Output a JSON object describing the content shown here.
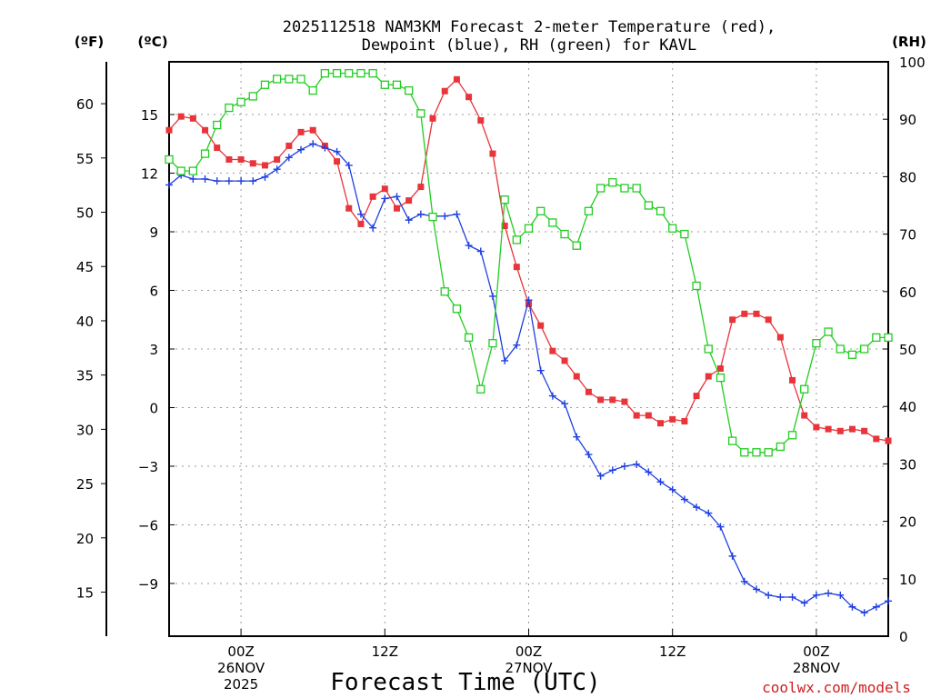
{
  "chart_data": {
    "type": "line",
    "title": [
      "2025112518 NAM3KM Forecast 2-meter Temperature (red),",
      "Dewpoint (blue), RH (green) for KAVL"
    ],
    "xlabel": "Forecast Time (UTC)",
    "credit": "coolwx.com/models",
    "axes": {
      "fahrenheit": {
        "unit": "(ºF)",
        "ticks": [
          15,
          20,
          25,
          30,
          35,
          40,
          45,
          50,
          55,
          60
        ]
      },
      "celsius": {
        "unit": "(ºC)",
        "ylim": [
          -11.7,
          17.7
        ],
        "ticks": [
          -9,
          -6,
          -3,
          0,
          3,
          6,
          9,
          12,
          15
        ]
      },
      "rh": {
        "unit": "(RH)",
        "ylim": [
          0,
          100
        ],
        "ticks": [
          0,
          10,
          20,
          30,
          40,
          50,
          60,
          70,
          80,
          90,
          100
        ]
      }
    },
    "x_hours_range": [
      0,
      60
    ],
    "x_ticks": [
      {
        "hour": 6,
        "lines": [
          "00Z",
          "26NOV",
          "2025"
        ]
      },
      {
        "hour": 18,
        "lines": [
          "12Z"
        ]
      },
      {
        "hour": 30,
        "lines": [
          "00Z",
          "27NOV"
        ]
      },
      {
        "hour": 42,
        "lines": [
          "12Z"
        ]
      },
      {
        "hour": 54,
        "lines": [
          "00Z",
          "28NOV"
        ]
      }
    ],
    "colors": {
      "temperature": "#e8343a",
      "dewpoint": "#2040e0",
      "rh": "#22cc22",
      "grid": "#999999"
    },
    "series": [
      {
        "name": "Temperature (°C)",
        "axis": "celsius",
        "marker": "filled-square",
        "x": [
          0,
          1,
          2,
          3,
          4,
          5,
          6,
          7,
          8,
          9,
          10,
          11,
          12,
          13,
          14,
          15,
          16,
          17,
          18,
          19,
          20,
          21,
          22,
          23,
          24,
          25,
          26,
          27,
          28,
          29,
          30,
          31,
          32,
          33,
          34,
          35,
          36,
          37,
          38,
          39,
          40,
          41,
          42,
          43,
          44,
          45,
          46,
          47,
          48,
          49,
          50,
          51,
          52,
          53,
          54,
          55,
          56,
          57,
          58,
          59,
          60
        ],
        "values": [
          14.2,
          14.9,
          14.8,
          14.2,
          13.3,
          12.7,
          12.7,
          12.5,
          12.4,
          12.7,
          13.4,
          14.1,
          14.2,
          13.4,
          12.6,
          10.2,
          9.4,
          10.8,
          11.2,
          10.2,
          10.6,
          11.3,
          14.8,
          16.2,
          16.8,
          15.9,
          14.7,
          13.0,
          9.3,
          7.2,
          5.3,
          4.2,
          2.9,
          2.4,
          1.6,
          0.8,
          0.4,
          0.4,
          0.3,
          -0.4,
          -0.4,
          -0.8,
          -0.6,
          -0.7,
          0.6,
          1.6,
          2.0,
          4.5,
          4.8,
          4.8,
          4.5,
          3.6,
          1.4,
          -0.4,
          -1.0,
          -1.1,
          -1.2,
          -1.1,
          -1.2,
          -1.6,
          -1.7
        ]
      },
      {
        "name": "Dewpoint (°C)",
        "axis": "celsius",
        "marker": "plus",
        "x": [
          0,
          1,
          2,
          3,
          4,
          5,
          6,
          7,
          8,
          9,
          10,
          11,
          12,
          13,
          14,
          15,
          16,
          17,
          18,
          19,
          20,
          21,
          22,
          23,
          24,
          25,
          26,
          27,
          28,
          29,
          30,
          31,
          32,
          33,
          34,
          35,
          36,
          37,
          38,
          39,
          40,
          41,
          42,
          43,
          44,
          45,
          46,
          47,
          48,
          49,
          50,
          51,
          52,
          53,
          54,
          55,
          56,
          57,
          58,
          59,
          60
        ],
        "values": [
          11.4,
          11.9,
          11.7,
          11.7,
          11.6,
          11.6,
          11.6,
          11.6,
          11.8,
          12.2,
          12.8,
          13.2,
          13.5,
          13.3,
          13.1,
          12.4,
          9.9,
          9.2,
          10.7,
          10.8,
          9.6,
          9.9,
          9.8,
          9.8,
          9.9,
          8.3,
          8.0,
          5.7,
          2.4,
          3.2,
          5.5,
          1.9,
          0.6,
          0.2,
          -1.5,
          -2.4,
          -3.5,
          -3.2,
          -3.0,
          -2.9,
          -3.3,
          -3.8,
          -4.2,
          -4.7,
          -5.1,
          -5.4,
          -6.1,
          -7.6,
          -8.9,
          -9.3,
          -9.6,
          -9.7,
          -9.7,
          -10.0,
          -9.6,
          -9.5,
          -9.6,
          -10.2,
          -10.5,
          -10.2,
          -9.9
        ]
      },
      {
        "name": "RH (%)",
        "axis": "rh",
        "marker": "open-square",
        "x": [
          0,
          1,
          2,
          3,
          4,
          5,
          6,
          7,
          8,
          9,
          10,
          11,
          12,
          13,
          14,
          15,
          16,
          17,
          18,
          19,
          20,
          21,
          22,
          23,
          24,
          25,
          26,
          27,
          28,
          29,
          30,
          31,
          32,
          33,
          34,
          35,
          36,
          37,
          38,
          39,
          40,
          41,
          42,
          43,
          44,
          45,
          46,
          47,
          48,
          49,
          50,
          51,
          52,
          53,
          54,
          55,
          56,
          57,
          58,
          59,
          60
        ],
        "values": [
          83,
          81,
          81,
          84,
          89,
          92,
          93,
          94,
          96,
          97,
          97,
          97,
          95,
          98,
          98,
          98,
          98,
          98,
          96,
          96,
          95,
          91,
          73,
          60,
          57,
          52,
          43,
          51,
          76,
          69,
          71,
          74,
          72,
          70,
          68,
          74,
          78,
          79,
          78,
          78,
          75,
          74,
          71,
          70,
          61,
          50,
          45,
          34,
          32,
          32,
          32,
          33,
          35,
          43,
          51,
          53,
          50,
          49,
          50,
          52,
          52
        ]
      }
    ]
  }
}
